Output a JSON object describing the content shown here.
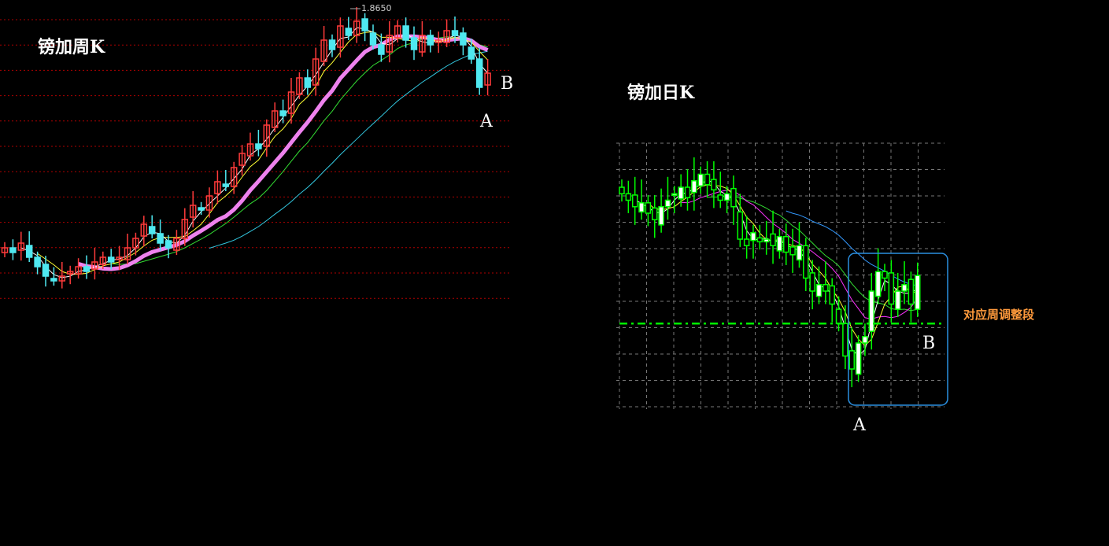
{
  "chart_data": [
    {
      "type": "candlestick",
      "title": "镑加周K",
      "peak_label": "1.8650",
      "grid": true,
      "colors": {
        "up": "#ff3b3b",
        "down": "#4fe8f0",
        "grid": "#b00000",
        "ma_fast": "#ffffff",
        "ma_mid": "#ffff33",
        "ma_thick": "#ee82ee",
        "ma_slow": "#33dd33",
        "ma_long": "#33c8e0"
      },
      "close": [
        1.36,
        1.35,
        1.37,
        1.34,
        1.32,
        1.3,
        1.29,
        1.3,
        1.31,
        1.32,
        1.31,
        1.33,
        1.34,
        1.33,
        1.34,
        1.36,
        1.38,
        1.41,
        1.39,
        1.37,
        1.36,
        1.38,
        1.42,
        1.45,
        1.44,
        1.47,
        1.5,
        1.49,
        1.53,
        1.56,
        1.58,
        1.57,
        1.62,
        1.65,
        1.64,
        1.69,
        1.72,
        1.7,
        1.76,
        1.8,
        1.78,
        1.83,
        1.81,
        1.84,
        1.82,
        1.79,
        1.77,
        1.81,
        1.83,
        1.8,
        1.78,
        1.81,
        1.79,
        1.8,
        1.82,
        1.81,
        1.79,
        1.76,
        1.7,
        1.73
      ],
      "annotations": {
        "a": "A",
        "b": "B"
      }
    },
    {
      "type": "candlestick",
      "title": "镑加日K",
      "grid": true,
      "colors": {
        "candle": "#00ff00",
        "up_fill": "#ffffff",
        "grid": "#777777",
        "ma_fast": "#ffffff",
        "ma_mid": "#ffff33",
        "ma_slow": "#ff33ff",
        "ma_slower": "#33dd33",
        "ma_long": "#3399ff",
        "level_line": "#00ee00",
        "box": "#2a8fe0"
      },
      "close": [
        1.775,
        1.77,
        1.765,
        1.768,
        1.76,
        1.755,
        1.765,
        1.77,
        1.775,
        1.78,
        1.772,
        1.785,
        1.79,
        1.782,
        1.778,
        1.77,
        1.775,
        1.765,
        1.74,
        1.735,
        1.745,
        1.738,
        1.74,
        1.735,
        1.742,
        1.73,
        1.728,
        1.735,
        1.71,
        1.7,
        1.705,
        1.7,
        1.69,
        1.675,
        1.65,
        1.64,
        1.66,
        1.665,
        1.7,
        1.715,
        1.71,
        1.69,
        1.7,
        1.705,
        1.69,
        1.712
      ],
      "level": 1.675,
      "annotations": {
        "a": "A",
        "b": "B",
        "note": "对应周调整段"
      }
    }
  ]
}
